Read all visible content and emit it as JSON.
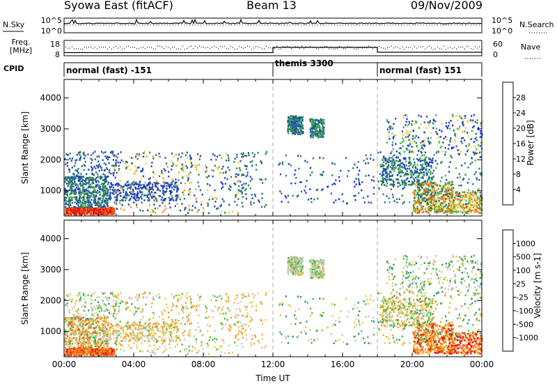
{
  "header": {
    "title": "Syowa East (fitACF)",
    "beam": "Beam 13",
    "date": "09/Nov/2009"
  },
  "param_panels": {
    "nsky": {
      "left_label": "N.Sky",
      "left_ticks": [
        "10^5",
        "10^0"
      ],
      "right_label": "N.Search",
      "right_ticks": [
        "10^5",
        "10^0"
      ]
    },
    "freq": {
      "left_label_line1": "Freq.",
      "left_label_line2": "[MHz]",
      "left_ticks": [
        "18",
        "8"
      ],
      "right_label": "Nave",
      "right_ticks": [
        "60",
        "0"
      ]
    },
    "cpid": {
      "label": "CPID",
      "segments": [
        {
          "label": "normal (fast) -151",
          "start_hour": 0,
          "end_hour": 12
        },
        {
          "label": "themis 3300",
          "start_hour": 12,
          "end_hour": 18
        },
        {
          "label": "normal (fast) 151",
          "start_hour": 18,
          "end_hour": 24
        }
      ]
    }
  },
  "chart_data": [
    {
      "type": "heatmap",
      "panel": "power",
      "ylabel": "Slant Range [km]",
      "yticks": [
        1000,
        2000,
        3000,
        4000
      ],
      "ylim": [
        180,
        4600
      ],
      "xlim": [
        0,
        24
      ],
      "colorbar": {
        "label": "Power [dB]",
        "ticks": [
          "4",
          "8",
          "12",
          "16",
          "20",
          "24",
          "28"
        ],
        "colors": [
          "#1428ff",
          "#1e4ab8",
          "#2e7d58",
          "#3fae4a",
          "#e8d23a",
          "#f59a1c",
          "#ee5a14",
          "#e01010"
        ]
      }
    },
    {
      "type": "heatmap",
      "panel": "velocity",
      "ylabel": "Slant Range [km]",
      "xlabel": "Time UT",
      "yticks": [
        1000,
        2000,
        3000,
        4000
      ],
      "ylim": [
        180,
        4600
      ],
      "xlim": [
        0,
        24
      ],
      "xticks": [
        "00:00",
        "04:00",
        "08:00",
        "12:00",
        "16:00",
        "20:00",
        "00:00"
      ],
      "colorbar": {
        "label": "Velocity [m s-1]",
        "ticks": [
          "1000",
          "500",
          "100",
          "25",
          "-25",
          "-100",
          "-500",
          "-1000"
        ],
        "colors": [
          "#1428d8",
          "#2e60b8",
          "#2e8f74",
          "#48c040",
          "#c8c8c8",
          "#e8c840",
          "#f49a20",
          "#ee5a14",
          "#e01010"
        ]
      }
    }
  ]
}
